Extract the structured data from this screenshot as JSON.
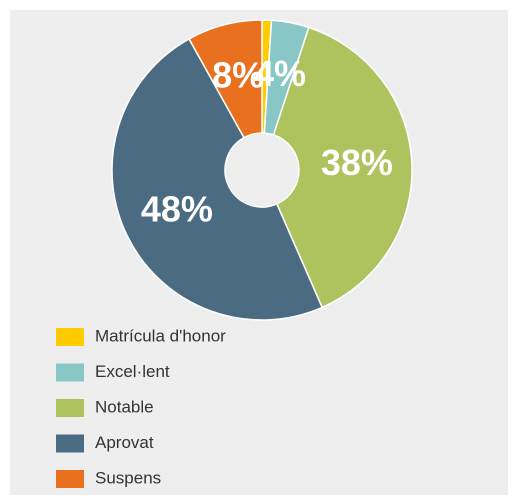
{
  "chart_data": {
    "type": "donut",
    "categories": [
      "Matrícula d'honor",
      "Excel·lent",
      "Notable",
      "Aprovat",
      "Suspens"
    ],
    "values": [
      1,
      4,
      38,
      48,
      8
    ],
    "value_labels": [
      null,
      "4%",
      "38%",
      "48%",
      "8%"
    ],
    "colors": [
      "#ffcc00",
      "#88c7c6",
      "#aec35e",
      "#4a6b82",
      "#e8701e"
    ],
    "legend": "bottom-left"
  }
}
